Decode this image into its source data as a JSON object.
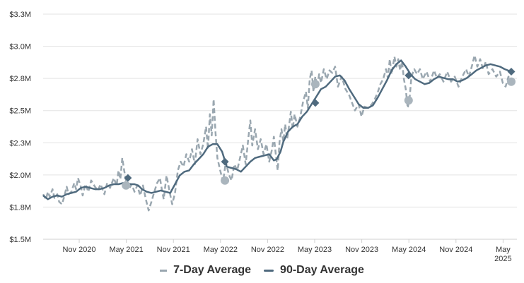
{
  "chart_data": {
    "type": "line",
    "y_ticks": [
      "$1.5M",
      "$1.8M",
      "$2.0M",
      "$2.3M",
      "$2.5M",
      "$2.8M",
      "$3.0M",
      "$3.3M"
    ],
    "x_ticks": [
      {
        "label": "Nov 2020",
        "t": 2020.833
      },
      {
        "label": "May 2021",
        "t": 2021.333
      },
      {
        "label": "Nov 2021",
        "t": 2021.833
      },
      {
        "label": "May 2022",
        "t": 2022.333
      },
      {
        "label": "Nov 2022",
        "t": 2022.833
      },
      {
        "label": "May 2023",
        "t": 2023.333
      },
      {
        "label": "Nov 2023",
        "t": 2023.833
      },
      {
        "label": "May 2024",
        "t": 2024.333
      },
      {
        "label": "Nov 2024",
        "t": 2024.833
      },
      {
        "label": "May\n2025",
        "t": 2025.333
      }
    ],
    "xlim": [
      2020.45,
      2025.42
    ],
    "ylim": [
      1.5,
      3.3
    ],
    "grid": true,
    "legend_position": "bottom",
    "colors": {
      "seven_day": "#9aa7b0",
      "ninety_day": "#4f6a7e",
      "circle_marker": "#aab5bd",
      "diamond_marker": "#4f6a7e"
    },
    "series": [
      {
        "name": "7-Day Average",
        "style": "dashed",
        "points": [
          [
            2020.45,
            1.86
          ],
          [
            2020.48,
            1.82
          ],
          [
            2020.5,
            1.88
          ],
          [
            2020.52,
            1.84
          ],
          [
            2020.55,
            1.9
          ],
          [
            2020.57,
            1.83
          ],
          [
            2020.6,
            1.86
          ],
          [
            2020.62,
            1.8
          ],
          [
            2020.65,
            1.78
          ],
          [
            2020.67,
            1.83
          ],
          [
            2020.7,
            1.92
          ],
          [
            2020.72,
            1.86
          ],
          [
            2020.75,
            1.88
          ],
          [
            2020.78,
            1.95
          ],
          [
            2020.8,
            1.9
          ],
          [
            2020.82,
            1.99
          ],
          [
            2020.85,
            1.92
          ],
          [
            2020.87,
            1.85
          ],
          [
            2020.9,
            1.94
          ],
          [
            2020.93,
            1.88
          ],
          [
            2020.96,
            1.97
          ],
          [
            2021.0,
            1.92
          ],
          [
            2021.03,
            1.89
          ],
          [
            2021.06,
            1.94
          ],
          [
            2021.1,
            1.86
          ],
          [
            2021.13,
            1.95
          ],
          [
            2021.16,
            1.91
          ],
          [
            2021.2,
            1.99
          ],
          [
            2021.23,
            1.93
          ],
          [
            2021.25,
            2.05
          ],
          [
            2021.27,
            1.98
          ],
          [
            2021.29,
            2.15
          ],
          [
            2021.31,
            2.05
          ],
          [
            2021.33,
            1.97
          ],
          [
            2021.36,
            1.9
          ],
          [
            2021.39,
            1.94
          ],
          [
            2021.42,
            1.88
          ],
          [
            2021.45,
            1.93
          ],
          [
            2021.48,
            1.85
          ],
          [
            2021.51,
            1.93
          ],
          [
            2021.54,
            1.82
          ],
          [
            2021.57,
            1.73
          ],
          [
            2021.6,
            1.8
          ],
          [
            2021.63,
            1.88
          ],
          [
            2021.66,
            1.95
          ],
          [
            2021.69,
            1.99
          ],
          [
            2021.71,
            1.9
          ],
          [
            2021.73,
            1.82
          ],
          [
            2021.76,
            2.01
          ],
          [
            2021.79,
            1.89
          ],
          [
            2021.82,
            1.78
          ],
          [
            2021.85,
            1.87
          ],
          [
            2021.88,
            2.05
          ],
          [
            2021.91,
            2.12
          ],
          [
            2021.94,
            2.08
          ],
          [
            2021.97,
            2.18
          ],
          [
            2022.0,
            2.12
          ],
          [
            2022.03,
            2.22
          ],
          [
            2022.06,
            2.1
          ],
          [
            2022.09,
            2.3
          ],
          [
            2022.12,
            2.18
          ],
          [
            2022.15,
            2.26
          ],
          [
            2022.18,
            2.4
          ],
          [
            2022.2,
            2.22
          ],
          [
            2022.22,
            2.5
          ],
          [
            2022.24,
            2.33
          ],
          [
            2022.26,
            2.62
          ],
          [
            2022.28,
            2.35
          ],
          [
            2022.3,
            2.15
          ],
          [
            2022.33,
            2.05
          ],
          [
            2022.36,
            1.96
          ],
          [
            2022.39,
            2.12
          ],
          [
            2022.42,
            2.02
          ],
          [
            2022.45,
            1.97
          ],
          [
            2022.48,
            2.1
          ],
          [
            2022.51,
            2.05
          ],
          [
            2022.54,
            2.15
          ],
          [
            2022.57,
            2.25
          ],
          [
            2022.6,
            2.1
          ],
          [
            2022.63,
            2.32
          ],
          [
            2022.65,
            2.45
          ],
          [
            2022.67,
            2.25
          ],
          [
            2022.7,
            2.38
          ],
          [
            2022.73,
            2.22
          ],
          [
            2022.76,
            2.3
          ],
          [
            2022.79,
            2.18
          ],
          [
            2022.82,
            2.26
          ],
          [
            2022.85,
            2.12
          ],
          [
            2022.88,
            2.22
          ],
          [
            2022.9,
            2.32
          ],
          [
            2022.92,
            2.18
          ],
          [
            2022.94,
            2.05
          ],
          [
            2022.96,
            2.28
          ],
          [
            2022.98,
            2.38
          ],
          [
            2023.0,
            2.28
          ],
          [
            2023.02,
            2.42
          ],
          [
            2023.04,
            2.3
          ],
          [
            2023.06,
            2.4
          ],
          [
            2023.08,
            2.52
          ],
          [
            2023.1,
            2.38
          ],
          [
            2023.12,
            2.5
          ],
          [
            2023.15,
            2.4
          ],
          [
            2023.18,
            2.48
          ],
          [
            2023.21,
            2.6
          ],
          [
            2023.24,
            2.68
          ],
          [
            2023.26,
            2.55
          ],
          [
            2023.28,
            2.78
          ],
          [
            2023.3,
            2.85
          ],
          [
            2023.32,
            2.68
          ],
          [
            2023.34,
            2.8
          ],
          [
            2023.36,
            2.72
          ],
          [
            2023.38,
            2.82
          ],
          [
            2023.4,
            2.75
          ],
          [
            2023.43,
            2.86
          ],
          [
            2023.46,
            2.78
          ],
          [
            2023.49,
            2.85
          ],
          [
            2023.52,
            2.83
          ],
          [
            2023.55,
            2.88
          ],
          [
            2023.58,
            2.72
          ],
          [
            2023.62,
            2.8
          ],
          [
            2023.66,
            2.7
          ],
          [
            2023.7,
            2.65
          ],
          [
            2023.73,
            2.59
          ],
          [
            2023.76,
            2.53
          ],
          [
            2023.8,
            2.58
          ],
          [
            2023.83,
            2.48
          ],
          [
            2023.86,
            2.56
          ],
          [
            2023.9,
            2.55
          ],
          [
            2023.94,
            2.58
          ],
          [
            2023.97,
            2.62
          ],
          [
            2024.0,
            2.67
          ],
          [
            2024.03,
            2.74
          ],
          [
            2024.06,
            2.78
          ],
          [
            2024.09,
            2.86
          ],
          [
            2024.11,
            2.79
          ],
          [
            2024.13,
            2.94
          ],
          [
            2024.15,
            2.82
          ],
          [
            2024.18,
            2.96
          ],
          [
            2024.2,
            2.88
          ],
          [
            2024.22,
            2.94
          ],
          [
            2024.24,
            2.85
          ],
          [
            2024.26,
            2.92
          ],
          [
            2024.28,
            2.78
          ],
          [
            2024.3,
            2.7
          ],
          [
            2024.32,
            2.55
          ],
          [
            2024.34,
            2.62
          ],
          [
            2024.36,
            2.8
          ],
          [
            2024.39,
            2.86
          ],
          [
            2024.42,
            2.82
          ],
          [
            2024.45,
            2.86
          ],
          [
            2024.48,
            2.78
          ],
          [
            2024.52,
            2.84
          ],
          [
            2024.56,
            2.76
          ],
          [
            2024.6,
            2.85
          ],
          [
            2024.63,
            2.79
          ],
          [
            2024.66,
            2.82
          ],
          [
            2024.7,
            2.76
          ],
          [
            2024.74,
            2.84
          ],
          [
            2024.78,
            2.76
          ],
          [
            2024.82,
            2.8
          ],
          [
            2024.86,
            2.72
          ],
          [
            2024.9,
            2.8
          ],
          [
            2024.94,
            2.86
          ],
          [
            2024.97,
            2.8
          ],
          [
            2025.0,
            2.88
          ],
          [
            2025.03,
            2.97
          ],
          [
            2025.06,
            2.88
          ],
          [
            2025.09,
            2.94
          ],
          [
            2025.12,
            2.86
          ],
          [
            2025.15,
            2.92
          ],
          [
            2025.18,
            2.82
          ],
          [
            2025.22,
            2.86
          ],
          [
            2025.26,
            2.8
          ],
          [
            2025.3,
            2.84
          ],
          [
            2025.33,
            2.75
          ],
          [
            2025.36,
            2.72
          ],
          [
            2025.39,
            2.8
          ],
          [
            2025.42,
            2.76
          ]
        ]
      },
      {
        "name": "90-Day Average",
        "style": "solid",
        "points": [
          [
            2020.45,
            1.85
          ],
          [
            2020.5,
            1.82
          ],
          [
            2020.55,
            1.84
          ],
          [
            2020.6,
            1.85
          ],
          [
            2020.65,
            1.84
          ],
          [
            2020.7,
            1.86
          ],
          [
            2020.75,
            1.87
          ],
          [
            2020.8,
            1.88
          ],
          [
            2020.85,
            1.91
          ],
          [
            2020.9,
            1.92
          ],
          [
            2020.95,
            1.91
          ],
          [
            2021.0,
            1.9
          ],
          [
            2021.05,
            1.9
          ],
          [
            2021.1,
            1.91
          ],
          [
            2021.15,
            1.93
          ],
          [
            2021.2,
            1.94
          ],
          [
            2021.25,
            1.94
          ],
          [
            2021.3,
            1.95
          ],
          [
            2021.33,
            1.95
          ],
          [
            2021.38,
            1.94
          ],
          [
            2021.42,
            1.94
          ],
          [
            2021.46,
            1.93
          ],
          [
            2021.5,
            1.9
          ],
          [
            2021.55,
            1.88
          ],
          [
            2021.6,
            1.87
          ],
          [
            2021.65,
            1.88
          ],
          [
            2021.7,
            1.89
          ],
          [
            2021.75,
            1.88
          ],
          [
            2021.8,
            1.87
          ],
          [
            2021.85,
            1.94
          ],
          [
            2021.9,
            2.01
          ],
          [
            2021.95,
            2.04
          ],
          [
            2022.0,
            2.05
          ],
          [
            2022.05,
            2.1
          ],
          [
            2022.1,
            2.14
          ],
          [
            2022.15,
            2.18
          ],
          [
            2022.2,
            2.24
          ],
          [
            2022.25,
            2.26
          ],
          [
            2022.3,
            2.26
          ],
          [
            2022.35,
            2.2
          ],
          [
            2022.4,
            2.08
          ],
          [
            2022.45,
            2.07
          ],
          [
            2022.5,
            2.06
          ],
          [
            2022.55,
            2.04
          ],
          [
            2022.6,
            2.08
          ],
          [
            2022.65,
            2.12
          ],
          [
            2022.7,
            2.15
          ],
          [
            2022.75,
            2.16
          ],
          [
            2022.8,
            2.17
          ],
          [
            2022.85,
            2.18
          ],
          [
            2022.9,
            2.13
          ],
          [
            2022.93,
            2.14
          ],
          [
            2022.97,
            2.2
          ],
          [
            2023.0,
            2.28
          ],
          [
            2023.05,
            2.36
          ],
          [
            2023.1,
            2.4
          ],
          [
            2023.15,
            2.42
          ],
          [
            2023.2,
            2.48
          ],
          [
            2023.25,
            2.52
          ],
          [
            2023.3,
            2.58
          ],
          [
            2023.35,
            2.64
          ],
          [
            2023.4,
            2.7
          ],
          [
            2023.45,
            2.72
          ],
          [
            2023.5,
            2.76
          ],
          [
            2023.55,
            2.8
          ],
          [
            2023.6,
            2.81
          ],
          [
            2023.65,
            2.77
          ],
          [
            2023.7,
            2.7
          ],
          [
            2023.75,
            2.64
          ],
          [
            2023.8,
            2.58
          ],
          [
            2023.85,
            2.55
          ],
          [
            2023.9,
            2.55
          ],
          [
            2023.95,
            2.57
          ],
          [
            2024.0,
            2.63
          ],
          [
            2024.05,
            2.7
          ],
          [
            2024.1,
            2.77
          ],
          [
            2024.15,
            2.85
          ],
          [
            2024.2,
            2.9
          ],
          [
            2024.25,
            2.93
          ],
          [
            2024.3,
            2.88
          ],
          [
            2024.35,
            2.82
          ],
          [
            2024.4,
            2.78
          ],
          [
            2024.45,
            2.76
          ],
          [
            2024.5,
            2.74
          ],
          [
            2024.55,
            2.75
          ],
          [
            2024.6,
            2.78
          ],
          [
            2024.65,
            2.8
          ],
          [
            2024.7,
            2.79
          ],
          [
            2024.75,
            2.78
          ],
          [
            2024.8,
            2.78
          ],
          [
            2024.85,
            2.76
          ],
          [
            2024.9,
            2.77
          ],
          [
            2024.95,
            2.79
          ],
          [
            2025.0,
            2.82
          ],
          [
            2025.05,
            2.85
          ],
          [
            2025.1,
            2.87
          ],
          [
            2025.15,
            2.89
          ],
          [
            2025.2,
            2.9
          ],
          [
            2025.25,
            2.89
          ],
          [
            2025.3,
            2.88
          ],
          [
            2025.35,
            2.86
          ],
          [
            2025.42,
            2.84
          ]
        ]
      }
    ],
    "circle_markers": [
      [
        2021.33,
        1.93
      ],
      [
        2022.38,
        1.97
      ],
      [
        2023.34,
        2.74
      ],
      [
        2024.33,
        2.61
      ],
      [
        2025.42,
        2.76
      ]
    ],
    "diamond_markers": [
      [
        2021.35,
        1.99
      ],
      [
        2022.38,
        2.12
      ],
      [
        2023.34,
        2.59
      ],
      [
        2024.33,
        2.81
      ],
      [
        2025.42,
        2.84
      ]
    ]
  },
  "legend": {
    "seven_day_label": "7-Day Average",
    "ninety_day_label": "90-Day Average"
  }
}
